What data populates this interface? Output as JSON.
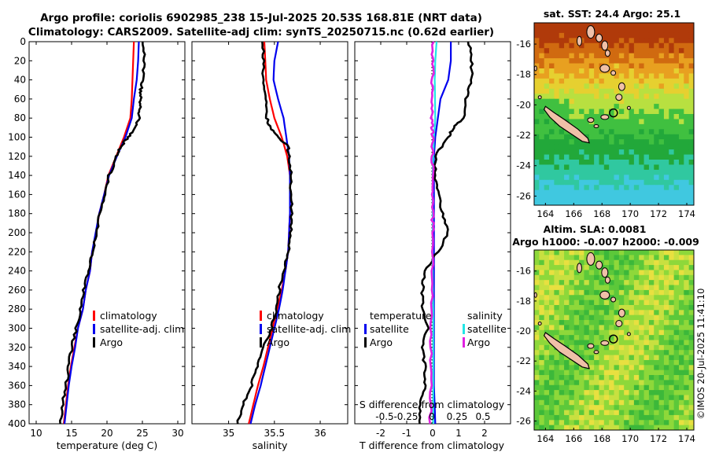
{
  "title": {
    "line1": "Argo profile: coriolis 6902985_238 15-Jul-2025 20.53S 168.81E (NRT data)",
    "line2": "Climatology: CARS2009. Satellite-adj clim: synTS_20250715.nc (0.62d earlier)"
  },
  "watermark": "©IMOS 20-Jul-2025 11:41:10",
  "colors": {
    "climatology": "#ff0000",
    "satellite": "#0000ee",
    "argo": "#000000",
    "salinity_sat": "#22e6e6",
    "salinity_argo": "#e020e0"
  },
  "chart_data": [
    {
      "type": "line",
      "name": "temperature-profile",
      "xlabel": "temperature (deg C)",
      "ylabel": "",
      "xlim": [
        9,
        31
      ],
      "ylim": [
        400,
        0
      ],
      "xticks": [
        10,
        15,
        20,
        25,
        30
      ],
      "yticks": [
        0,
        20,
        40,
        60,
        80,
        100,
        120,
        140,
        160,
        180,
        200,
        220,
        240,
        260,
        280,
        300,
        320,
        340,
        360,
        380,
        400
      ],
      "legend": [
        "climatology",
        "satellite-adj. clim",
        "Argo"
      ],
      "series": [
        {
          "name": "climatology",
          "color": "#ff0000",
          "depth": [
            0,
            20,
            40,
            60,
            80,
            100,
            120,
            140,
            160,
            180,
            200,
            220,
            240,
            260,
            280,
            300,
            320,
            340,
            360,
            380,
            400
          ],
          "values": [
            23.8,
            23.7,
            23.6,
            23.5,
            23.3,
            22.4,
            21.3,
            20.2,
            19.6,
            18.9,
            18.5,
            17.9,
            17.6,
            17.0,
            16.6,
            15.9,
            15.4,
            14.9,
            14.5,
            14.2,
            13.9
          ]
        },
        {
          "name": "satellite-adj. clim",
          "color": "#0000ee",
          "depth": [
            0,
            20,
            40,
            60,
            80,
            100,
            120,
            140,
            160,
            180,
            200,
            220,
            240,
            260,
            280,
            300,
            320,
            340,
            360,
            380,
            400
          ],
          "values": [
            24.5,
            24.4,
            24.2,
            23.8,
            23.5,
            22.6,
            21.4,
            20.3,
            19.6,
            18.9,
            18.4,
            17.9,
            17.6,
            17.0,
            16.6,
            15.9,
            15.5,
            15.0,
            14.6,
            14.3,
            14.0
          ]
        },
        {
          "name": "Argo",
          "color": "#000000",
          "depth": [
            0,
            20,
            40,
            50,
            60,
            70,
            80,
            90,
            100,
            110,
            120,
            140,
            160,
            180,
            200,
            220,
            240,
            260,
            280,
            300,
            320,
            340,
            360,
            380,
            400
          ],
          "values": [
            25.2,
            25.2,
            25.1,
            24.8,
            24.8,
            24.6,
            24.5,
            23.9,
            23.0,
            21.9,
            21.4,
            20.3,
            19.7,
            19.0,
            18.6,
            18.0,
            17.3,
            16.7,
            16.2,
            15.7,
            15.0,
            14.6,
            14.2,
            13.7,
            13.4
          ]
        }
      ]
    },
    {
      "type": "line",
      "name": "salinity-profile",
      "xlabel": "salinity",
      "ylabel": "",
      "xlim": [
        34.6,
        36.3
      ],
      "ylim": [
        400,
        0
      ],
      "xticks": [
        35,
        35.5,
        36
      ],
      "legend": [
        "climatology",
        "satellite-adj. clim",
        "Argo"
      ],
      "series": [
        {
          "name": "climatology",
          "color": "#ff0000",
          "depth": [
            0,
            20,
            40,
            60,
            80,
            100,
            120,
            140,
            160,
            180,
            200,
            220,
            240,
            260,
            280,
            300,
            320,
            340,
            360,
            380,
            400
          ],
          "values": [
            35.39,
            35.4,
            35.41,
            35.45,
            35.5,
            35.58,
            35.64,
            35.67,
            35.67,
            35.67,
            35.66,
            35.65,
            35.62,
            35.58,
            35.53,
            35.48,
            35.43,
            35.38,
            35.32,
            35.27,
            35.22
          ]
        },
        {
          "name": "satellite-adj. clim",
          "color": "#0000ee",
          "depth": [
            0,
            20,
            40,
            60,
            80,
            100,
            120,
            140,
            160,
            180,
            200,
            220,
            240,
            260,
            280,
            300,
            320,
            340,
            360,
            380,
            400
          ],
          "values": [
            35.54,
            35.5,
            35.49,
            35.54,
            35.6,
            35.63,
            35.66,
            35.67,
            35.67,
            35.67,
            35.66,
            35.65,
            35.62,
            35.59,
            35.55,
            35.5,
            35.45,
            35.4,
            35.35,
            35.29,
            35.24
          ]
        },
        {
          "name": "Argo",
          "color": "#000000",
          "depth": [
            0,
            20,
            40,
            60,
            80,
            90,
            100,
            110,
            120,
            140,
            160,
            180,
            200,
            220,
            240,
            260,
            280,
            300,
            320,
            340,
            360,
            380,
            400
          ],
          "values": [
            35.38,
            35.38,
            35.37,
            35.4,
            35.42,
            35.45,
            35.55,
            35.65,
            35.66,
            35.68,
            35.68,
            35.69,
            35.68,
            35.65,
            35.61,
            35.55,
            35.52,
            35.47,
            35.38,
            35.31,
            35.25,
            35.15,
            35.1
          ]
        }
      ]
    },
    {
      "type": "line",
      "name": "difference-profile",
      "xlabel": "T difference from climatology",
      "top_xlabel": "S difference from climatology",
      "ylabel": "",
      "xlim": [
        -3,
        3
      ],
      "ylim": [
        400,
        0
      ],
      "xticks": [
        -2,
        -1,
        0,
        1,
        2
      ],
      "top_xlim": [
        -0.75,
        0.75
      ],
      "top_xticks": [
        "-0.5",
        "-0.25",
        "0",
        "0.25",
        "0.5"
      ],
      "legend_temperature_title": "temperature",
      "legend_salinity_title": "salinity",
      "legend_temperature": [
        "satellite",
        "Argo"
      ],
      "legend_salinity": [
        "satellite",
        "Argo"
      ],
      "series": [
        {
          "name": "temperature satellite",
          "color": "#0000ee",
          "depth": [
            0,
            20,
            40,
            60,
            80,
            100,
            120,
            140,
            160,
            180,
            200,
            240,
            280,
            320,
            360,
            400
          ],
          "values": [
            0.7,
            0.7,
            0.6,
            0.3,
            0.2,
            0.1,
            0.05,
            0.05,
            0.05,
            0.05,
            0.05,
            0.05,
            0.05,
            0.05,
            0.05,
            0.1
          ]
        },
        {
          "name": "temperature Argo",
          "color": "#000000",
          "depth": [
            0,
            20,
            40,
            60,
            80,
            90,
            100,
            120,
            140,
            160,
            180,
            200,
            220,
            240,
            260,
            280,
            300,
            320,
            340,
            360,
            380,
            400
          ],
          "values": [
            1.4,
            1.5,
            1.5,
            1.3,
            1.2,
            0.8,
            0.6,
            0.1,
            0.1,
            0.2,
            0.4,
            0.6,
            0.2,
            -0.3,
            -0.4,
            -0.4,
            -0.2,
            -0.4,
            -0.3,
            -0.3,
            -0.5,
            -0.5
          ]
        },
        {
          "name": "salinity satellite",
          "color": "#22e6e6",
          "depth": [
            0,
            20,
            40,
            60,
            80,
            100,
            120,
            140,
            160,
            180,
            200,
            240,
            280,
            320,
            360,
            400
          ],
          "values": [
            0.15,
            0.1,
            0.08,
            0.09,
            0.1,
            0.05,
            0.02,
            0.0,
            0.0,
            0.0,
            0.0,
            0.0,
            0.02,
            0.02,
            0.02,
            0.02
          ]
        },
        {
          "name": "salinity Argo",
          "color": "#e020e0",
          "depth": [
            0,
            20,
            40,
            60,
            80,
            90,
            100,
            120,
            140,
            160,
            180,
            200,
            240,
            280,
            320,
            360,
            400
          ],
          "values": [
            0.0,
            0.0,
            0.0,
            -0.03,
            -0.04,
            -0.02,
            0.0,
            0.0,
            0.0,
            0.0,
            0.0,
            0.0,
            -0.03,
            -0.04,
            -0.06,
            -0.06,
            -0.1
          ]
        }
      ]
    },
    {
      "type": "heatmap",
      "name": "sst-map",
      "title": "sat. SST: 24.4 Argo: 25.1",
      "xticks": [
        164,
        166,
        168,
        170,
        172,
        174
      ],
      "yticks": [
        -16,
        -18,
        -20,
        -22,
        -24,
        -26
      ],
      "xlim": [
        163.2,
        174.5
      ],
      "ylim": [
        -26.6,
        -14.6
      ],
      "marker": {
        "lon": 168.81,
        "lat": -20.53
      }
    },
    {
      "type": "heatmap",
      "name": "sla-map",
      "title_line1": "Altim. SLA: 0.0081",
      "title_line2": "Argo h1000: -0.007 h2000: -0.009",
      "xticks": [
        164,
        166,
        168,
        170,
        172,
        174
      ],
      "yticks": [
        -16,
        -18,
        -20,
        -22,
        -24,
        -26
      ],
      "xlim": [
        163.2,
        174.5
      ],
      "ylim": [
        -26.6,
        -14.6
      ],
      "marker": {
        "lon": 168.81,
        "lat": -20.53
      }
    }
  ]
}
